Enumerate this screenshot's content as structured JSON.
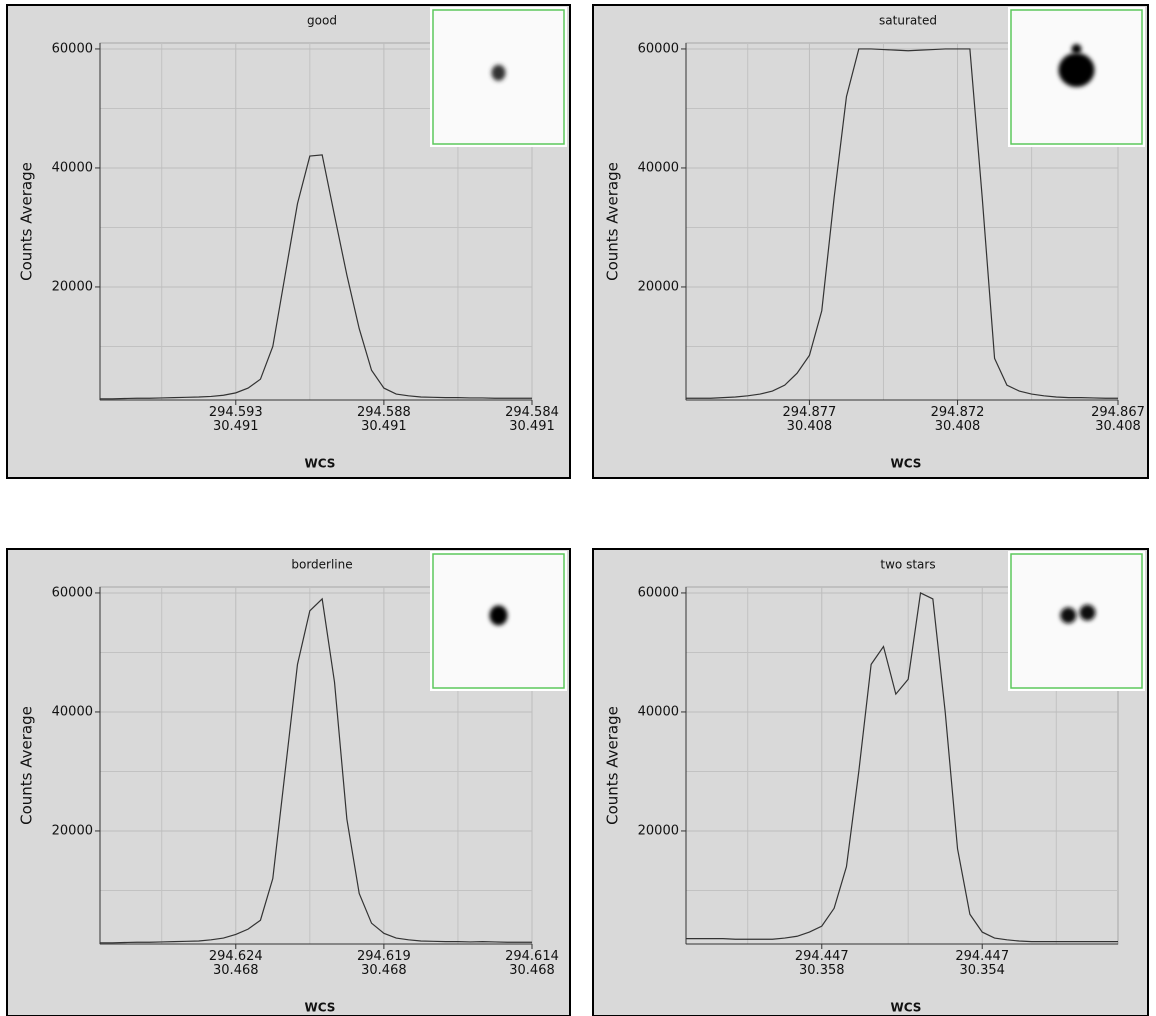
{
  "chart_data": [
    {
      "type": "line",
      "title": "good",
      "ylabel": "Counts Average",
      "xlabel": "WCS",
      "color": "#333333",
      "grid": true,
      "ylim": [
        1000,
        61000
      ],
      "yticks": [
        20000,
        40000,
        60000
      ],
      "yminorticks": [
        10000,
        30000,
        50000
      ],
      "xlim": [
        0,
        35
      ],
      "xticks": [
        {
          "value": 11,
          "label": "294.593\n30.491"
        },
        {
          "value": 23,
          "label": "294.588\n30.491"
        },
        {
          "value": 35,
          "label": "294.584\n30.491"
        }
      ],
      "xminorticks": [
        5,
        17,
        29
      ],
      "values": [
        1200,
        1200,
        1250,
        1300,
        1300,
        1350,
        1400,
        1450,
        1500,
        1600,
        1800,
        2200,
        3000,
        4500,
        10000,
        22000,
        34000,
        42000,
        42200,
        32000,
        22000,
        13000,
        6000,
        3000,
        2000,
        1700,
        1500,
        1450,
        1400,
        1400,
        1350,
        1350,
        1300,
        1300,
        1300,
        1300
      ]
    },
    {
      "type": "line",
      "title": "saturated",
      "ylabel": "Counts Average",
      "xlabel": "WCS",
      "color": "#333333",
      "grid": true,
      "ylim": [
        1000,
        61000
      ],
      "yticks": [
        20000,
        40000,
        60000
      ],
      "yminorticks": [
        10000,
        30000,
        50000
      ],
      "xlim": [
        0,
        35
      ],
      "xticks": [
        {
          "value": 10,
          "label": "294.877\n30.408"
        },
        {
          "value": 22,
          "label": "294.872\n30.408"
        },
        {
          "value": 35,
          "label": "294.867\n30.408"
        }
      ],
      "xminorticks": [
        5,
        16,
        28
      ],
      "values": [
        1300,
        1300,
        1300,
        1400,
        1500,
        1700,
        2000,
        2500,
        3500,
        5500,
        8500,
        16000,
        35000,
        52000,
        60000,
        60000,
        59900,
        59800,
        59700,
        59800,
        59900,
        60000,
        60000,
        60000,
        35000,
        8000,
        3500,
        2500,
        2000,
        1700,
        1500,
        1400,
        1400,
        1350,
        1300,
        1300
      ]
    },
    {
      "type": "line",
      "title": "borderline",
      "ylabel": "Counts Average",
      "xlabel": "WCS",
      "color": "#333333",
      "grid": true,
      "ylim": [
        1000,
        61000
      ],
      "yticks": [
        20000,
        40000,
        60000
      ],
      "yminorticks": [
        10000,
        30000,
        50000
      ],
      "xlim": [
        0,
        35
      ],
      "xticks": [
        {
          "value": 11,
          "label": "294.624\n30.468"
        },
        {
          "value": 23,
          "label": "294.619\n30.468"
        },
        {
          "value": 35,
          "label": "294.614\n30.468"
        }
      ],
      "xminorticks": [
        5,
        17,
        29
      ],
      "values": [
        1200,
        1200,
        1250,
        1300,
        1300,
        1350,
        1400,
        1450,
        1500,
        1700,
        2000,
        2600,
        3500,
        5000,
        12000,
        30000,
        48000,
        57000,
        59000,
        45000,
        22000,
        9500,
        4500,
        2800,
        2000,
        1700,
        1500,
        1450,
        1400,
        1400,
        1350,
        1400,
        1350,
        1300,
        1300,
        1300
      ]
    },
    {
      "type": "line",
      "title": "two stars",
      "ylabel": "Counts Average",
      "xlabel": "WCS",
      "color": "#333333",
      "grid": true,
      "ylim": [
        1000,
        61000
      ],
      "yticks": [
        20000,
        40000,
        60000
      ],
      "yminorticks": [
        10000,
        30000,
        50000
      ],
      "xlim": [
        0,
        35
      ],
      "xticks": [
        {
          "value": 11,
          "label": "294.447\n30.358"
        },
        {
          "value": 24,
          "label": "294.447\n30.354"
        }
      ],
      "xminorticks": [
        5,
        18,
        30
      ],
      "values": [
        1900,
        1900,
        1900,
        1900,
        1800,
        1800,
        1800,
        1800,
        2000,
        2300,
        3000,
        4000,
        7000,
        14000,
        30000,
        48000,
        51000,
        43000,
        45500,
        60000,
        59000,
        40000,
        17000,
        6000,
        3000,
        2000,
        1700,
        1500,
        1400,
        1400,
        1400,
        1400,
        1400,
        1400,
        1400,
        1400
      ]
    }
  ]
}
